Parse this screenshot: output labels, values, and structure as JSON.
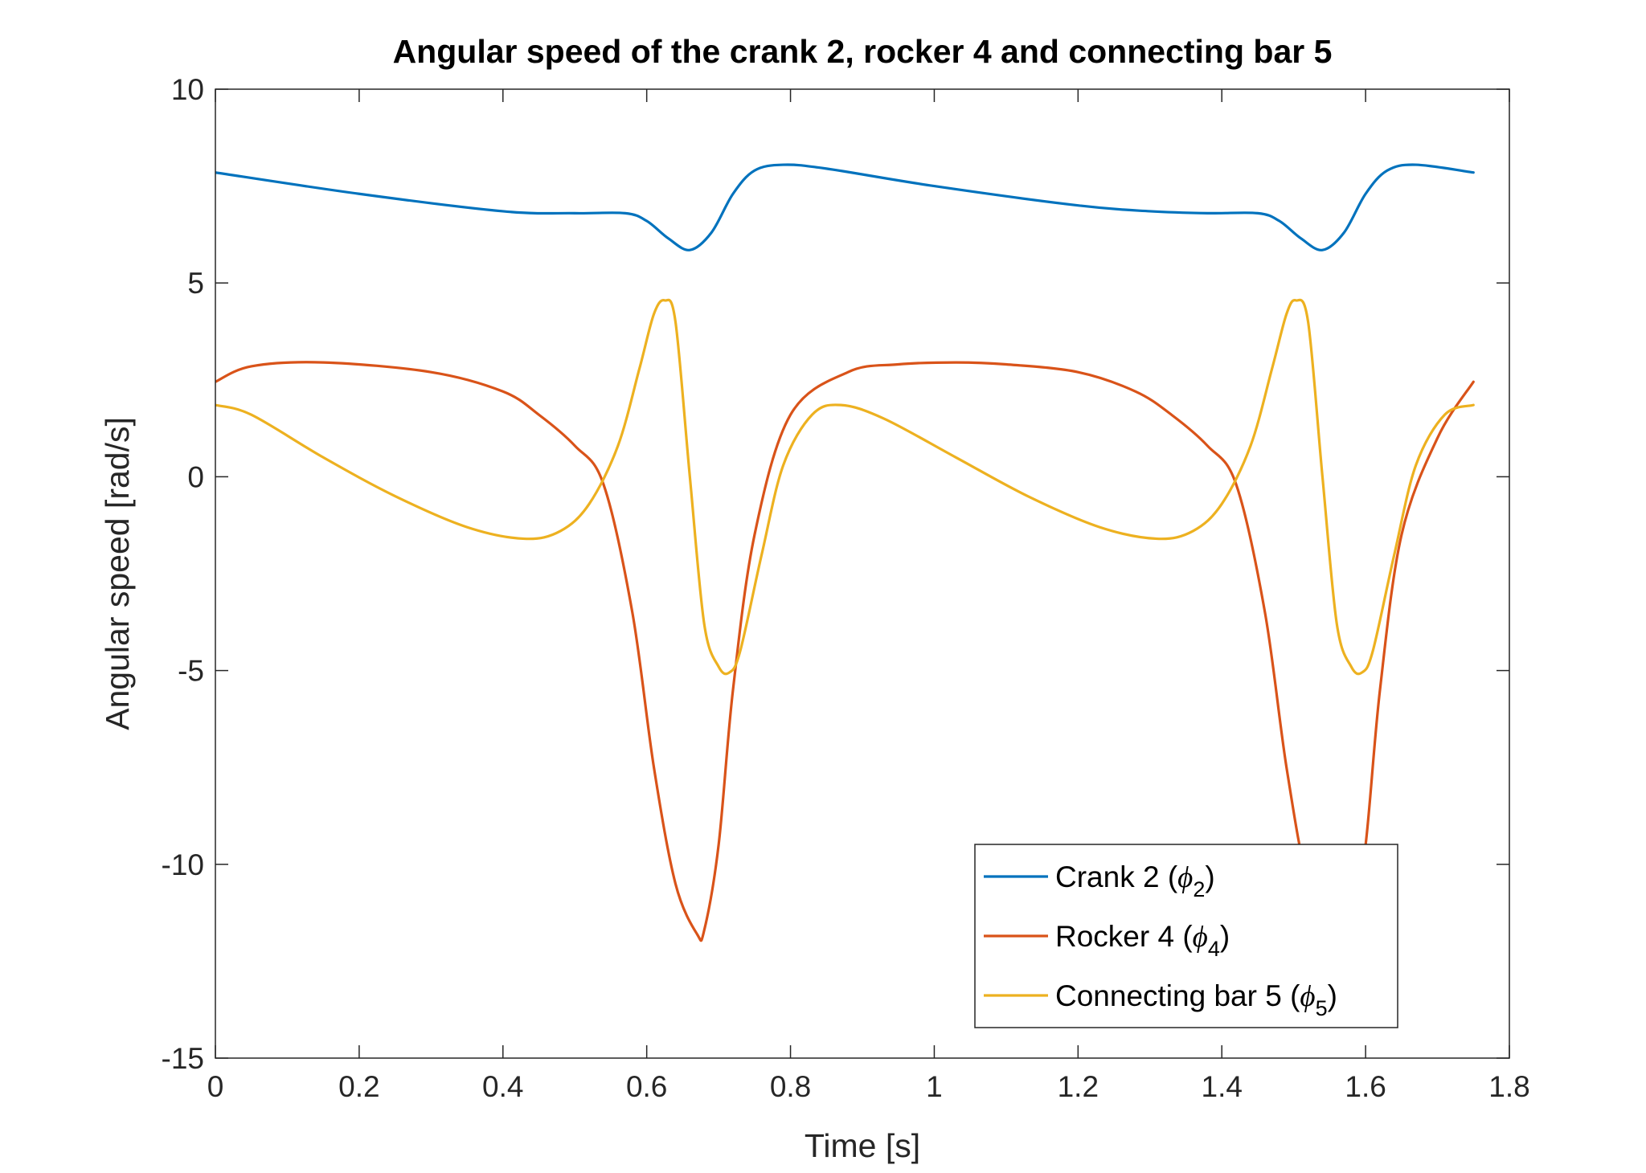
{
  "chart_data": {
    "type": "line",
    "title": "Angular speed of the crank 2, rocker 4 and connecting bar 5",
    "xlabel": "Time [s]",
    "ylabel": "Angular speed [rad/s]",
    "xlim": [
      0,
      1.8
    ],
    "ylim": [
      -15,
      10
    ],
    "xticks": [
      0,
      0.2,
      0.4,
      0.6,
      0.8,
      1,
      1.2,
      1.4,
      1.6,
      1.8
    ],
    "xtick_labels": [
      "0",
      "0.2",
      "0.4",
      "0.6",
      "0.8",
      "1",
      "1.2",
      "1.4",
      "1.6",
      "1.8"
    ],
    "yticks": [
      10,
      5,
      0,
      -5,
      -10,
      -15
    ],
    "ytick_labels": [
      "10",
      "5",
      "0",
      "-5",
      "-10",
      "-15"
    ],
    "grid": false,
    "legend_position": "bottom-right",
    "series": [
      {
        "name": "Crank 2 (",
        "symbol": "ϕ",
        "subscript": "2",
        "suffix": ")",
        "color": "#0072BD",
        "x": [
          0,
          0.2,
          0.4,
          0.5,
          0.57,
          0.6,
          0.63,
          0.66,
          0.69,
          0.72,
          0.75,
          0.79,
          0.85,
          1.0,
          1.2,
          1.3,
          1.38,
          1.45,
          1.48,
          1.51,
          1.54,
          1.57,
          1.6,
          1.63,
          1.67,
          1.75
        ],
        "y": [
          7.85,
          7.3,
          6.85,
          6.8,
          6.8,
          6.6,
          6.15,
          5.85,
          6.3,
          7.3,
          7.9,
          8.05,
          7.95,
          7.5,
          7.0,
          6.85,
          6.8,
          6.8,
          6.6,
          6.15,
          5.85,
          6.3,
          7.3,
          7.9,
          8.05,
          7.85
        ]
      },
      {
        "name": "Rocker 4 (",
        "symbol": "ϕ",
        "subscript": "4",
        "suffix": ")",
        "color": "#D95319",
        "x": [
          0,
          0.05,
          0.15,
          0.3,
          0.4,
          0.45,
          0.5,
          0.54,
          0.58,
          0.61,
          0.64,
          0.67,
          0.68,
          0.7,
          0.72,
          0.75,
          0.8,
          0.88,
          0.95,
          1.03,
          1.1,
          1.2,
          1.28,
          1.33,
          1.38,
          1.42,
          1.46,
          1.49,
          1.52,
          1.555,
          1.58,
          1.6,
          1.62,
          1.65,
          1.7,
          1.75
        ],
        "y": [
          2.45,
          2.85,
          2.95,
          2.7,
          2.2,
          1.6,
          0.8,
          -0.2,
          -3.5,
          -7.5,
          -10.5,
          -11.8,
          -11.7,
          -9.5,
          -5.5,
          -1.5,
          1.6,
          2.7,
          2.9,
          2.95,
          2.9,
          2.7,
          2.2,
          1.6,
          0.8,
          -0.2,
          -3.5,
          -7.5,
          -10.5,
          -11.8,
          -11.7,
          -9.5,
          -5.5,
          -1.5,
          1.0,
          2.45
        ]
      },
      {
        "name": "Connecting bar 5 (",
        "symbol": "ϕ",
        "subscript": "5",
        "suffix": ")",
        "color": "#EDB120",
        "x": [
          0,
          0.05,
          0.15,
          0.25,
          0.35,
          0.43,
          0.48,
          0.52,
          0.56,
          0.59,
          0.61,
          0.625,
          0.64,
          0.66,
          0.68,
          0.7,
          0.715,
          0.73,
          0.76,
          0.79,
          0.83,
          0.87,
          0.93,
          1.03,
          1.13,
          1.23,
          1.31,
          1.36,
          1.4,
          1.44,
          1.47,
          1.49,
          1.503,
          1.52,
          1.54,
          1.56,
          1.58,
          1.595,
          1.61,
          1.64,
          1.67,
          1.71,
          1.75
        ],
        "y": [
          1.85,
          1.6,
          0.5,
          -0.5,
          -1.3,
          -1.6,
          -1.4,
          -0.7,
          0.8,
          2.8,
          4.2,
          4.55,
          4.0,
          0.0,
          -3.8,
          -4.9,
          -5.05,
          -4.5,
          -2.0,
          0.3,
          1.6,
          1.85,
          1.5,
          0.5,
          -0.5,
          -1.3,
          -1.6,
          -1.4,
          -0.7,
          0.8,
          2.8,
          4.2,
          4.55,
          4.0,
          0.0,
          -3.8,
          -4.9,
          -5.05,
          -4.5,
          -2.0,
          0.3,
          1.6,
          1.85
        ]
      }
    ]
  }
}
